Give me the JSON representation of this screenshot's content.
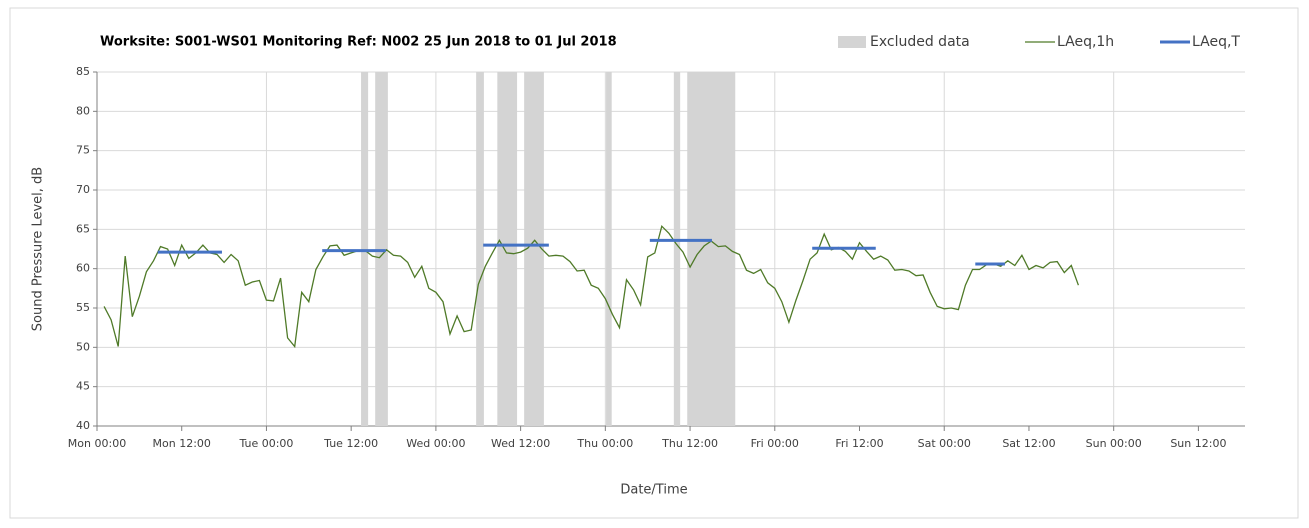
{
  "chart_data": {
    "type": "line",
    "title": "Worksite: S001-WS01    Monitoring Ref: N002      25 Jun 2018 to 01 Jul 2018",
    "xlabel": "Date/Time",
    "ylabel": "Sound Pressure Level, dB",
    "xlim": [
      0,
      162.6
    ],
    "ylim": [
      40,
      85
    ],
    "yticks": [
      40,
      45,
      50,
      55,
      60,
      65,
      70,
      75,
      80,
      85
    ],
    "xticks": [
      {
        "value": 0,
        "label": "Mon 00:00"
      },
      {
        "value": 12,
        "label": "Mon 12:00"
      },
      {
        "value": 24,
        "label": "Tue 00:00"
      },
      {
        "value": 36,
        "label": "Tue 12:00"
      },
      {
        "value": 48,
        "label": "Wed 00:00"
      },
      {
        "value": 60,
        "label": "Wed 12:00"
      },
      {
        "value": 72,
        "label": "Thu 00:00"
      },
      {
        "value": 84,
        "label": "Thu 12:00"
      },
      {
        "value": 96,
        "label": "Fri 00:00"
      },
      {
        "value": 108,
        "label": "Fri 12:00"
      },
      {
        "value": 120,
        "label": "Sat 00:00"
      },
      {
        "value": 132,
        "label": "Sat 12:00"
      },
      {
        "value": 144,
        "label": "Sun 00:00"
      },
      {
        "value": 156,
        "label": "Sun 12:00"
      }
    ],
    "grid": true,
    "legend": "top",
    "series": [
      {
        "name": "Excluded data",
        "color": "#d4d4d4",
        "ranges": [
          [
            37.4,
            38.4
          ],
          [
            39.4,
            41.2
          ],
          [
            53.7,
            54.8
          ],
          [
            56.7,
            59.5
          ],
          [
            60.5,
            63.3
          ],
          [
            72.1,
            72.9
          ],
          [
            81.7,
            82.6
          ],
          [
            83.6,
            90.4
          ]
        ]
      },
      {
        "name": "LAeq,1h",
        "color": "#4f7a28",
        "x": [
          1,
          2,
          3,
          4,
          5,
          6,
          7,
          8,
          9,
          10,
          11,
          12,
          13,
          14,
          15,
          16,
          17,
          18,
          19,
          20,
          21,
          22,
          23,
          24,
          25,
          26,
          27,
          28,
          29,
          30,
          31,
          32,
          33,
          34,
          35,
          36,
          37,
          38,
          39,
          40,
          41,
          42,
          43,
          44,
          45,
          46,
          47,
          48,
          49,
          50,
          51,
          52,
          53,
          54,
          55,
          56,
          57,
          58,
          59,
          60,
          61,
          62,
          63,
          64,
          65,
          66,
          67,
          68,
          69,
          70,
          71,
          72,
          73,
          74,
          75,
          76,
          77,
          78,
          79,
          80,
          81,
          82,
          83,
          84,
          85,
          86,
          87,
          88,
          89,
          90,
          91,
          92,
          93,
          94,
          95,
          96,
          97,
          98,
          99,
          100,
          101,
          102,
          103,
          104,
          105,
          106,
          107,
          108,
          109,
          110,
          111,
          112,
          113,
          114,
          115,
          116,
          117,
          118,
          119,
          120,
          121,
          122,
          123,
          124,
          125,
          126,
          127,
          128,
          129,
          130,
          131,
          132,
          133,
          134,
          135,
          136,
          137,
          138,
          139
        ],
        "values": [
          55.2,
          53.5,
          50.1,
          61.6,
          53.9,
          56.5,
          59.6,
          61,
          62.8,
          62.5,
          60.4,
          63,
          61.3,
          62,
          63,
          62,
          61.8,
          60.8,
          61.8,
          61,
          57.9,
          58.3,
          58.5,
          56,
          55.9,
          58.8,
          51.2,
          50.1,
          57,
          55.8,
          59.9,
          61.5,
          62.9,
          63,
          61.7,
          62,
          62.3,
          62.3,
          61.6,
          61.4,
          62.4,
          61.7,
          61.6,
          60.8,
          58.9,
          60.3,
          57.5,
          57,
          55.8,
          51.7,
          54,
          52,
          52.2,
          58,
          60.3,
          62,
          63.6,
          62,
          61.9,
          62.1,
          62.6,
          63.6,
          62.5,
          61.6,
          61.7,
          61.6,
          60.9,
          59.7,
          59.8,
          57.9,
          57.5,
          56.2,
          54.2,
          52.5,
          58.6,
          57.3,
          55.4,
          61.5,
          62,
          65.4,
          64.5,
          63.2,
          62.1,
          60.2,
          61.8,
          62.9,
          63.5,
          62.8,
          62.9,
          62.2,
          61.8,
          59.8,
          59.4,
          59.9,
          58.2,
          57.5,
          55.8,
          53.2,
          56,
          58.5,
          61.2,
          62,
          64.4,
          62.4,
          62.7,
          62.2,
          61.2,
          63.3,
          62.2,
          61.2,
          61.6,
          61.1,
          59.8,
          59.9,
          59.7,
          59.1,
          59.2,
          57,
          55.2,
          54.9,
          55,
          54.8,
          57.9,
          59.9,
          59.9,
          60.5,
          60.6,
          60.3,
          61,
          60.4,
          61.7,
          59.9,
          60.4,
          60.1,
          60.8,
          60.9,
          59.5,
          60.4,
          57.9
        ]
      },
      {
        "name": "LAeq,T",
        "color": "#4472c4",
        "segments": [
          {
            "x": [
              8.6,
              17.7
            ],
            "value": 62.1
          },
          {
            "x": [
              31.9,
              40.9
            ],
            "value": 62.3
          },
          {
            "x": [
              54.7,
              64.0
            ],
            "value": 63.0
          },
          {
            "x": [
              78.3,
              87.1
            ],
            "value": 63.6
          },
          {
            "x": [
              101.3,
              110.3
            ],
            "value": 62.6
          },
          {
            "x": [
              124.4,
              128.6
            ],
            "value": 60.6
          }
        ]
      }
    ]
  }
}
